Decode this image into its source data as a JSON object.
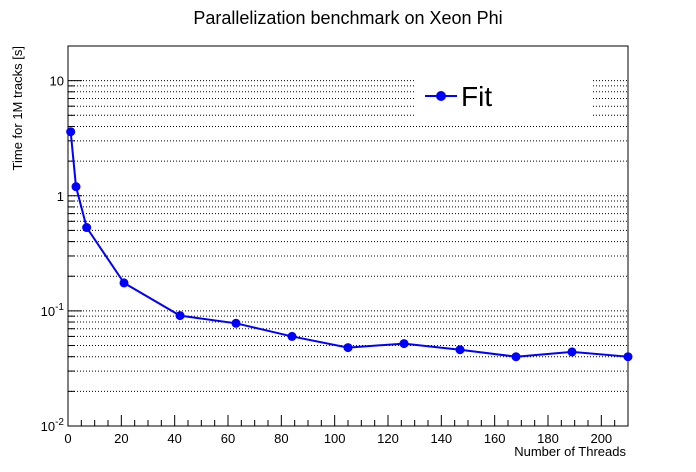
{
  "chart_data": {
    "type": "line",
    "title": "Parallelization benchmark on Xeon Phi",
    "xlabel": "Number of Threads",
    "ylabel": "Time for 1M tracks [s]",
    "xlim": [
      0,
      210
    ],
    "ylim": [
      0.01,
      20
    ],
    "yscale": "log",
    "grid": "horizontal dotted",
    "legend_position": "top-right",
    "x_ticks": [
      0,
      20,
      40,
      60,
      80,
      100,
      120,
      140,
      160,
      180,
      200
    ],
    "x_tick_labels": [
      "0",
      "20",
      "40",
      "60",
      "80",
      "100",
      "120",
      "140",
      "160",
      "180",
      "200"
    ],
    "y_tick_labels": [
      {
        "value": 0.01,
        "base": "10",
        "exp": "-2"
      },
      {
        "value": 0.1,
        "base": "10",
        "exp": "-1"
      },
      {
        "value": 1,
        "base": "1",
        "exp": ""
      },
      {
        "value": 10,
        "base": "10",
        "exp": ""
      }
    ],
    "series": [
      {
        "name": "Fit",
        "color": "#0000ff",
        "x": [
          1,
          3,
          7,
          21,
          42,
          63,
          84,
          105,
          126,
          147,
          168,
          189,
          210
        ],
        "y": [
          3.6,
          1.2,
          0.53,
          0.175,
          0.091,
          0.078,
          0.06,
          0.048,
          0.052,
          0.046,
          0.04,
          0.044,
          0.04
        ]
      }
    ]
  }
}
